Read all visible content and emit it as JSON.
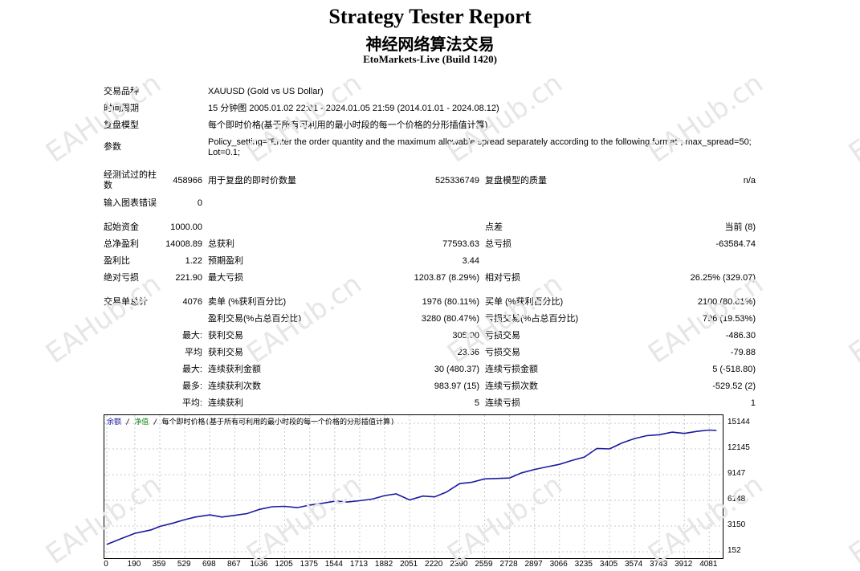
{
  "header": {
    "title": "Strategy Tester Report",
    "subtitle": "神经网络算法交易",
    "server": "EtoMarkets-Live (Build 1420)"
  },
  "settings": {
    "symbol_label": "交易品种",
    "symbol_value": "XAUUSD (Gold vs US Dollar)",
    "period_label": "时间周期",
    "period_value": "15 分钟图 2005.01.02 22:01 - 2024.01.05 21:59 (2014.01.01 - 2024.08.12)",
    "model_label": "复盘模型",
    "model_value": "每个即时价格(基于所有可利用的最小时段的每一个价格的分形插值计算)",
    "params_label": "参数",
    "params_line1": "Policy_setting=\"Enter the order quantity and the maximum allowable spread separately according to the following format\"; max_spread=50;",
    "params_line2": "Lot=0.1;"
  },
  "quality": {
    "bars_label_1": "经测试过的柱",
    "bars_label_2": "数",
    "bars_value": "458966",
    "ticks_label": "用于复盘的即时价数量",
    "ticks_value": "525336749",
    "quality_label": "复盘模型的质量",
    "quality_value": "n/a",
    "errors_label": "输入图表错误",
    "errors_value": "0"
  },
  "results": {
    "deposit_label": "起始资金",
    "deposit_value": "1000.00",
    "spread_label": "点差",
    "spread_value": "当前 (8)",
    "net_label": "总净盈利",
    "net_value": "14008.89",
    "gross_profit_label": "总获利",
    "gross_profit_value": "77593.63",
    "gross_loss_label": "总亏损",
    "gross_loss_value": "-63584.74",
    "pf_label": "盈利比",
    "pf_value": "1.22",
    "payoff_label": "预期盈利",
    "payoff_value": "3.44",
    "abs_dd_label": "绝对亏损",
    "abs_dd_value": "221.90",
    "max_dd_label": "最大亏损",
    "max_dd_value": "1203.87 (8.29%)",
    "rel_dd_label": "相对亏损",
    "rel_dd_value": "26.25% (329.07)"
  },
  "trades": {
    "total_label": "交易单总计",
    "total_value": "4076",
    "short_label": "卖单 (%获利百分比)",
    "short_value": "1976 (80.11%)",
    "long_label": "买单 (%获利百分比)",
    "long_value": "2100 (80.81%)",
    "win_label": "盈利交易(%占总百分比)",
    "win_value": "3280 (80.47%)",
    "loss_label": "亏损交易(%占总百分比)",
    "loss_value": "796 (19.53%)",
    "largest_label": "最大:",
    "largest_win_label": "获利交易",
    "largest_win_value": "305.00",
    "largest_loss_label": "亏损交易",
    "largest_loss_value": "-486.30",
    "avg_label": "平均",
    "avg_win_label": "获利交易",
    "avg_win_value": "23.66",
    "avg_loss_label": "亏损交易",
    "avg_loss_value": "-79.88",
    "max_cons_label": "最大:",
    "max_cons_win_label": "连续获利金额",
    "max_cons_win_value": "30 (480.37)",
    "max_cons_loss_label": "连续亏损金额",
    "max_cons_loss_value": "5 (-518.80)",
    "maximal_label": "最多:",
    "maximal_win_label": "连续获利次数",
    "maximal_win_value": "983.97 (15)",
    "maximal_loss_label": "连续亏损次数",
    "maximal_loss_value": "-529.52 (2)",
    "avg_cons_label": "平均:",
    "avg_cons_win_label": "连续获利",
    "avg_cons_win_value": "5",
    "avg_cons_loss_label": "连续亏损",
    "avg_cons_loss_value": "1"
  },
  "watermark": "EAHub.cn",
  "chart_data": {
    "type": "line",
    "legend": {
      "balance": "余额",
      "sep1": " / ",
      "equity": "净值",
      "rest": " / 每个即时价格(基于所有可利用的最小时段的每一个价格的分形插值计算)"
    },
    "yticks": [
      "15144",
      "12145",
      "9147",
      "6148",
      "3150",
      "152"
    ],
    "xticks": [
      "0",
      "190",
      "359",
      "529",
      "698",
      "867",
      "1036",
      "1205",
      "1375",
      "1544",
      "1713",
      "1882",
      "2051",
      "2220",
      "2390",
      "2559",
      "2728",
      "2897",
      "3066",
      "3235",
      "3405",
      "3574",
      "3743",
      "3912",
      "4081"
    ],
    "xlim": [
      0,
      4150
    ],
    "ylim": [
      152,
      15144
    ],
    "series": [
      {
        "color": "#1a1aa0",
        "x": [
          0,
          100,
          190,
          300,
          359,
          450,
          529,
          600,
          698,
          780,
          867,
          950,
          1036,
          1120,
          1205,
          1290,
          1375,
          1460,
          1544,
          1630,
          1713,
          1800,
          1882,
          1960,
          2051,
          2140,
          2220,
          2300,
          2390,
          2470,
          2559,
          2640,
          2728,
          2810,
          2897,
          2980,
          3066,
          3150,
          3235,
          3320,
          3405,
          3490,
          3574,
          3660,
          3743,
          3830,
          3912,
          4000,
          4081,
          4130
        ],
        "y": [
          1000,
          1700,
          2300,
          2700,
          3100,
          3500,
          3900,
          4200,
          4450,
          4200,
          4400,
          4600,
          5100,
          5400,
          5450,
          5300,
          5600,
          5800,
          6050,
          5950,
          6100,
          6300,
          6700,
          6900,
          6200,
          6650,
          6550,
          7100,
          8100,
          8250,
          8650,
          8700,
          8750,
          9350,
          9750,
          10050,
          10350,
          10800,
          11200,
          12200,
          12150,
          12850,
          13350,
          13700,
          13800,
          14100,
          13950,
          14200,
          14350,
          14300
        ]
      }
    ]
  }
}
